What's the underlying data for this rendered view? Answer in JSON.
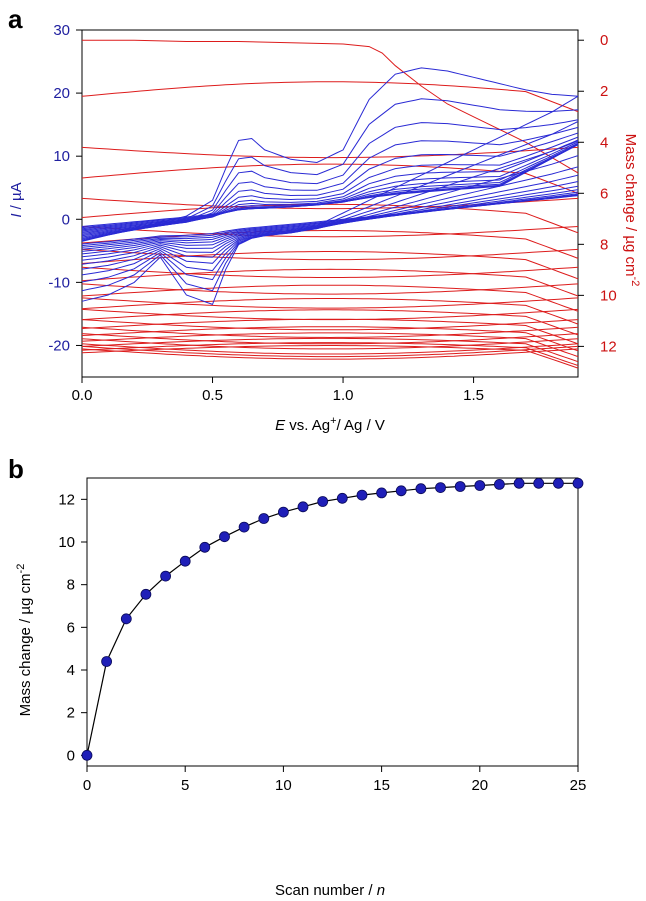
{
  "chart_data": [
    {
      "panel": "a",
      "type": "line",
      "xlabel_prefix": "E",
      "xlabel_suffix": " vs. Ag",
      "xlabel_sup": "+",
      "xlabel_tail": "/ Ag / V",
      "ylabel_left_italic": "I",
      "ylabel_left_rest": " / µA",
      "ylabel_right": "Mass change / µg cm",
      "ylabel_right_sup": "-2",
      "xlim": [
        0,
        1.9
      ],
      "ylim_left": [
        -25,
        30
      ],
      "ylim_right": [
        13.2,
        -0.4
      ],
      "x_ticks": [
        "0.0",
        "0.5",
        "1.0",
        "1.5"
      ],
      "y_left_ticks": [
        "-20",
        "-10",
        "0",
        "10",
        "20",
        "30"
      ],
      "y_right_ticks": [
        "0",
        "2",
        "4",
        "6",
        "8",
        "10",
        "12"
      ],
      "grid": false,
      "colors": {
        "current": "#2a2ad4",
        "mass": "#dd1c1c"
      },
      "current_series_first_cycle": {
        "name": "",
        "x": [
          0.0,
          0.1,
          0.2,
          0.3,
          0.4,
          0.5,
          0.55,
          0.6,
          0.65,
          0.7,
          0.8,
          0.9,
          1.0,
          1.1,
          1.2,
          1.3,
          1.4,
          1.5,
          1.6,
          1.7,
          1.8,
          1.9
        ],
        "forward": [
          -3.5,
          -2.5,
          -1.5,
          -0.5,
          0.5,
          3.0,
          8.0,
          12.5,
          12.8,
          11.0,
          9.5,
          9.0,
          11.0,
          19.0,
          23.0,
          24.0,
          23.5,
          22.5,
          21.5,
          20.5,
          19.8,
          19.5
        ],
        "reverse": [
          -13.0,
          -12.0,
          -10.0,
          -6.0,
          -12.0,
          -13.5,
          -8.0,
          -4.0,
          -3.0,
          -2.5,
          -2.0,
          -1.0,
          1.0,
          3.0,
          5.0,
          7.0,
          9.0,
          11.0,
          13.0,
          15.0,
          17.0,
          19.5
        ]
      },
      "mass_series_first_cycle": {
        "name": "",
        "x": [
          0.0,
          0.2,
          0.4,
          0.6,
          0.8,
          1.0,
          1.1,
          1.15,
          1.2,
          1.3,
          1.4,
          1.5,
          1.6,
          1.7,
          1.8,
          1.9
        ],
        "values": [
          0.0,
          0.0,
          0.05,
          0.05,
          0.1,
          0.15,
          0.25,
          0.5,
          1.0,
          1.8,
          2.5,
          3.0,
          3.5,
          4.0,
          4.6,
          5.2
        ]
      },
      "mass_change_per_scan_level": [
        0.0,
        4.4,
        6.4,
        7.5,
        8.4,
        9.1,
        9.75,
        10.3,
        10.75,
        11.15,
        11.45,
        11.7,
        11.9,
        12.1,
        12.2,
        12.3
      ]
    },
    {
      "panel": "b",
      "type": "line",
      "xlabel_text": "Scan number / ",
      "xlabel_italic": "n",
      "ylabel": "Mass change / µg cm",
      "ylabel_sup": "-2",
      "xlim": [
        0,
        25
      ],
      "ylim": [
        -0.5,
        13
      ],
      "x_ticks": [
        "0",
        "5",
        "10",
        "15",
        "20",
        "25"
      ],
      "y_ticks": [
        "0",
        "2",
        "4",
        "6",
        "8",
        "10",
        "12"
      ],
      "grid": false,
      "marker_color": "#1f1fb8",
      "series": [
        {
          "name": "",
          "x": [
            0,
            1,
            2,
            3,
            4,
            5,
            6,
            7,
            8,
            9,
            10,
            11,
            12,
            13,
            14,
            15,
            16,
            17,
            18,
            19,
            20,
            21,
            22,
            23,
            24,
            25
          ],
          "values": [
            0.0,
            4.4,
            6.4,
            7.55,
            8.4,
            9.1,
            9.75,
            10.25,
            10.7,
            11.1,
            11.4,
            11.65,
            11.9,
            12.05,
            12.2,
            12.3,
            12.4,
            12.5,
            12.55,
            12.6,
            12.65,
            12.7,
            12.75,
            12.75,
            12.75,
            12.75
          ]
        }
      ]
    }
  ]
}
